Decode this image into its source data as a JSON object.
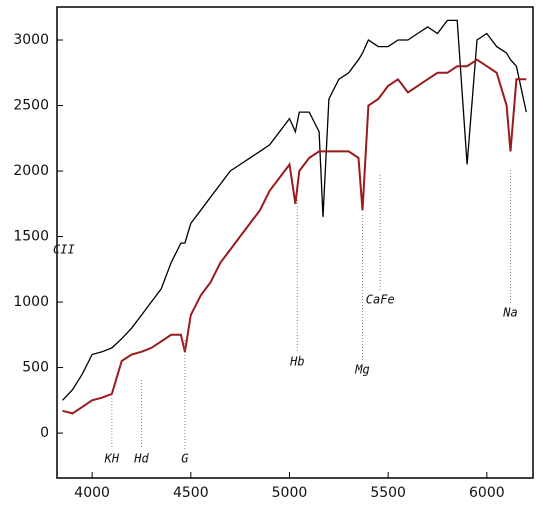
{
  "chart_data": {
    "type": "line",
    "x": [
      3850,
      3900,
      3950,
      4000,
      4050,
      4100,
      4150,
      4200,
      4250,
      4300,
      4350,
      4400,
      4450,
      4470,
      4500,
      4550,
      4600,
      4650,
      4700,
      4750,
      4800,
      4850,
      4900,
      4950,
      5000,
      5030,
      5050,
      5100,
      5150,
      5170,
      5200,
      5250,
      5300,
      5350,
      5370,
      5400,
      5450,
      5500,
      5550,
      5600,
      5650,
      5700,
      5750,
      5800,
      5850,
      5900,
      5950,
      6000,
      6050,
      6100,
      6120,
      6150,
      6200
    ],
    "series": [
      {
        "color": "#000000",
        "values": [
          250,
          330,
          450,
          600,
          620,
          650,
          720,
          800,
          900,
          1000,
          1100,
          1300,
          1450,
          1450,
          1600,
          1700,
          1800,
          1900,
          2000,
          2050,
          2100,
          2150,
          2200,
          2300,
          2400,
          2300,
          2450,
          2450,
          2300,
          1650,
          2550,
          2700,
          2750,
          2850,
          2900,
          3000,
          2950,
          2950,
          3000,
          3000,
          3050,
          3100,
          3050,
          3150,
          3150,
          2050,
          3000,
          3050,
          2950,
          2900,
          2850,
          2800,
          2450
        ]
      },
      {
        "color": "#9b1b1b",
        "values": [
          170,
          150,
          200,
          250,
          270,
          300,
          550,
          600,
          620,
          650,
          700,
          750,
          750,
          620,
          900,
          1050,
          1150,
          1300,
          1400,
          1500,
          1600,
          1700,
          1850,
          1950,
          2050,
          1750,
          2000,
          2100,
          2150,
          2150,
          2150,
          2150,
          2150,
          2100,
          1700,
          2500,
          2550,
          2650,
          2700,
          2600,
          2650,
          2700,
          2750,
          2750,
          2800,
          2800,
          2850,
          2800,
          2750,
          2500,
          2150,
          2700,
          2700
        ]
      }
    ],
    "annotations": [
      {
        "text": "CII",
        "x": 3830
      },
      {
        "text": "KH",
        "x": 4100
      },
      {
        "text": "Hd",
        "x": 4250
      },
      {
        "text": "G",
        "x": 4470
      },
      {
        "text": "Hb",
        "x": 5040
      },
      {
        "text": "Mg",
        "x": 5370
      },
      {
        "text": "CaFe",
        "x": 5460
      },
      {
        "text": "Na",
        "x": 6120
      }
    ],
    "xlim": [
      3822,
      6234
    ],
    "ylim": [
      -343,
      3252
    ],
    "xticks": [
      4000,
      4500,
      5000,
      5500,
      6000
    ],
    "yticks": [
      0,
      500,
      1000,
      1500,
      2000,
      2500,
      3000
    ]
  }
}
